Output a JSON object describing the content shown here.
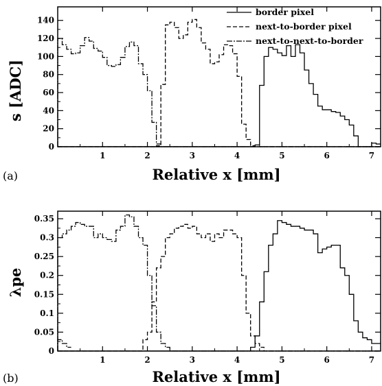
{
  "figure": {
    "panels": [
      {
        "panel_label": "(a)",
        "xlabel": "Relative x [mm]",
        "ylabel": "s [ADC]"
      },
      {
        "panel_label": "(b)",
        "xlabel": "Relative x [mm]",
        "ylabel": "λpe"
      }
    ]
  },
  "chart_data": [
    {
      "type": "line",
      "step": true,
      "panel_label": "(a)",
      "title": "",
      "xlabel": "Relative x [mm]",
      "ylabel": "s [ADC]",
      "xlim": [
        0.0,
        7.2
      ],
      "ylim": [
        0,
        155
      ],
      "xticks": [
        1,
        2,
        3,
        4,
        5,
        6,
        7
      ],
      "yticks": [
        0,
        20,
        40,
        60,
        80,
        100,
        120,
        140
      ],
      "grid": false,
      "legend_position": "top-right",
      "series": [
        {
          "name": "border pixel",
          "line_style": "solid",
          "x": [
            0.1,
            0.2,
            0.3,
            0.4,
            0.5,
            0.6,
            0.7,
            0.8,
            0.9,
            1.0,
            1.1,
            1.2,
            1.3,
            1.4,
            1.5,
            1.6,
            1.7,
            1.8,
            1.9,
            2.0,
            2.1,
            2.2,
            2.3,
            2.4,
            2.5,
            2.6,
            2.7,
            2.8,
            2.9,
            3.0,
            3.1,
            3.2,
            3.3,
            3.4,
            3.5,
            3.6,
            3.7,
            3.8,
            3.9,
            4.0,
            4.1,
            4.2,
            4.3,
            4.4,
            4.5,
            4.6,
            4.7,
            4.8,
            4.9,
            5.0,
            5.1,
            5.2,
            5.3,
            5.4,
            5.5,
            5.6,
            5.7,
            5.8,
            5.9,
            6.0,
            6.1,
            6.2,
            6.3,
            6.4,
            6.5,
            6.6,
            6.7,
            6.8,
            6.9,
            7.0,
            7.1,
            7.2
          ],
          "y": [
            0,
            0,
            0,
            0,
            0,
            0,
            0,
            0,
            0,
            0,
            0,
            0,
            0,
            0,
            0,
            0,
            0,
            0,
            0,
            0,
            0,
            0,
            0,
            0,
            0,
            0,
            0,
            0,
            0,
            0,
            0,
            0,
            0,
            0,
            0,
            0,
            0,
            0,
            0,
            0,
            0,
            0,
            0,
            0,
            2,
            68,
            100,
            110,
            108,
            104,
            101,
            112,
            100,
            113,
            104,
            85,
            70,
            58,
            45,
            41,
            41,
            39,
            38,
            34,
            30,
            24,
            12,
            0,
            0,
            0,
            4,
            3
          ]
        },
        {
          "name": "next-to-border pixel",
          "line_style": "dashed",
          "x": [
            0.1,
            0.2,
            0.3,
            0.4,
            0.5,
            0.6,
            0.7,
            0.8,
            0.9,
            1.0,
            1.1,
            1.2,
            1.3,
            1.4,
            1.5,
            1.6,
            1.7,
            1.8,
            1.9,
            2.0,
            2.1,
            2.2,
            2.3,
            2.4,
            2.5,
            2.6,
            2.7,
            2.8,
            2.9,
            3.0,
            3.1,
            3.2,
            3.3,
            3.4,
            3.5,
            3.6,
            3.7,
            3.8,
            3.9,
            4.0,
            4.1,
            4.2,
            4.3,
            4.4,
            4.5,
            4.6,
            4.7,
            4.8,
            4.9,
            5.0,
            5.1,
            5.2,
            5.3,
            5.4,
            5.5,
            5.6,
            5.7,
            5.8,
            5.9,
            6.0,
            6.1,
            6.2,
            6.3,
            6.4,
            6.5,
            6.6,
            6.7,
            6.8,
            6.9,
            7.0,
            7.1,
            7.2
          ],
          "y": [
            0,
            0,
            0,
            0,
            0,
            0,
            0,
            0,
            0,
            0,
            0,
            0,
            0,
            0,
            0,
            0,
            0,
            0,
            0,
            0,
            0,
            0,
            1,
            69,
            135,
            138,
            132,
            120,
            124,
            138,
            141,
            132,
            115,
            108,
            92,
            94,
            102,
            113,
            112,
            103,
            78,
            25,
            8,
            1,
            0,
            0,
            0,
            0,
            0,
            0,
            0,
            0,
            0,
            0,
            0,
            0,
            0,
            0,
            0,
            0,
            0,
            0,
            0,
            0,
            0,
            0,
            0,
            0,
            0,
            0,
            0,
            0
          ]
        },
        {
          "name": "next-to-next-to-border",
          "line_style": "dash-dot",
          "x": [
            0.1,
            0.2,
            0.3,
            0.4,
            0.5,
            0.6,
            0.7,
            0.8,
            0.9,
            1.0,
            1.1,
            1.2,
            1.3,
            1.4,
            1.5,
            1.6,
            1.7,
            1.8,
            1.9,
            2.0,
            2.1,
            2.2,
            2.3,
            2.4,
            2.5,
            2.6,
            2.7,
            2.8,
            2.9,
            3.0,
            3.1,
            3.2,
            3.3,
            3.4,
            3.5,
            3.6,
            3.7,
            3.8,
            3.9,
            4.0,
            4.1,
            4.2,
            4.3,
            4.4,
            4.5,
            4.6,
            4.7,
            4.8,
            4.9,
            5.0,
            5.1,
            5.2,
            5.3,
            5.4,
            5.5,
            5.6,
            5.7,
            5.8,
            5.9,
            6.0,
            6.1,
            6.2,
            6.3,
            6.4,
            6.5,
            6.6,
            6.7,
            6.8,
            6.9,
            7.0,
            7.1,
            7.2
          ],
          "y": [
            120,
            113,
            108,
            103,
            104,
            112,
            121,
            117,
            109,
            106,
            99,
            90,
            89,
            91,
            99,
            111,
            116,
            112,
            92,
            80,
            62,
            27,
            3,
            0,
            0,
            0,
            0,
            0,
            0,
            0,
            0,
            0,
            0,
            0,
            0,
            0,
            0,
            0,
            0,
            0,
            0,
            0,
            0,
            0,
            0,
            0,
            0,
            0,
            0,
            0,
            0,
            0,
            0,
            0,
            0,
            0,
            0,
            0,
            0,
            0,
            0,
            0,
            0,
            0,
            0,
            0,
            0,
            0,
            0,
            0,
            0,
            0
          ]
        }
      ]
    },
    {
      "type": "line",
      "step": true,
      "panel_label": "(b)",
      "title": "",
      "xlabel": "Relative x [mm]",
      "ylabel": "λpe",
      "xlim": [
        0.0,
        7.2
      ],
      "ylim": [
        0,
        0.37
      ],
      "xticks": [
        1,
        2,
        3,
        4,
        5,
        6,
        7
      ],
      "yticks": [
        0,
        0.05,
        0.1,
        0.15,
        0.2,
        0.25,
        0.3,
        0.35
      ],
      "grid": false,
      "series": [
        {
          "name": "border pixel",
          "line_style": "solid",
          "x": [
            0.1,
            0.2,
            0.3,
            0.4,
            0.5,
            0.6,
            0.7,
            0.8,
            0.9,
            1.0,
            1.1,
            1.2,
            1.3,
            1.4,
            1.5,
            1.6,
            1.7,
            1.8,
            1.9,
            2.0,
            2.1,
            2.2,
            2.3,
            2.4,
            2.5,
            2.6,
            2.7,
            2.8,
            2.9,
            3.0,
            3.1,
            3.2,
            3.3,
            3.4,
            3.5,
            3.6,
            3.7,
            3.8,
            3.9,
            4.0,
            4.1,
            4.2,
            4.3,
            4.4,
            4.5,
            4.6,
            4.7,
            4.8,
            4.9,
            5.0,
            5.1,
            5.2,
            5.3,
            5.4,
            5.5,
            5.6,
            5.7,
            5.8,
            5.9,
            6.0,
            6.1,
            6.2,
            6.3,
            6.4,
            6.5,
            6.6,
            6.7,
            6.8,
            6.9,
            7.0,
            7.1,
            7.2
          ],
          "y": [
            0,
            0,
            0,
            0,
            0,
            0,
            0,
            0,
            0,
            0,
            0,
            0,
            0,
            0,
            0,
            0,
            0,
            0,
            0,
            0,
            0,
            0,
            0,
            0,
            0,
            0,
            0,
            0,
            0,
            0,
            0,
            0,
            0,
            0,
            0,
            0,
            0,
            0,
            0,
            0,
            0,
            0,
            0,
            0.01,
            0.04,
            0.13,
            0.21,
            0.28,
            0.31,
            0.345,
            0.34,
            0.335,
            0.33,
            0.33,
            0.325,
            0.32,
            0.32,
            0.31,
            0.26,
            0.27,
            0.275,
            0.28,
            0.28,
            0.22,
            0.2,
            0.15,
            0.08,
            0.05,
            0.035,
            0.03,
            0.02,
            0.02
          ]
        },
        {
          "name": "next-to-border pixel",
          "line_style": "dashed",
          "x": [
            0.1,
            0.2,
            0.3,
            0.4,
            0.5,
            0.6,
            0.7,
            0.8,
            0.9,
            1.0,
            1.1,
            1.2,
            1.3,
            1.4,
            1.5,
            1.6,
            1.7,
            1.8,
            1.9,
            2.0,
            2.1,
            2.2,
            2.3,
            2.4,
            2.5,
            2.6,
            2.7,
            2.8,
            2.9,
            3.0,
            3.1,
            3.2,
            3.3,
            3.4,
            3.5,
            3.6,
            3.7,
            3.8,
            3.9,
            4.0,
            4.1,
            4.2,
            4.3,
            4.4,
            4.5,
            4.6,
            4.7,
            4.8,
            4.9,
            5.0,
            5.1,
            5.2,
            5.3,
            5.4,
            5.5,
            5.6,
            5.7,
            5.8,
            5.9,
            6.0,
            6.1,
            6.2,
            6.3,
            6.4,
            6.5,
            6.6,
            6.7,
            6.8,
            6.9,
            7.0,
            7.1,
            7.2
          ],
          "y": [
            0,
            0,
            0,
            0,
            0,
            0,
            0,
            0,
            0,
            0,
            0,
            0,
            0,
            0,
            0,
            0,
            0,
            0,
            0,
            0.03,
            0.05,
            0.13,
            0.22,
            0.25,
            0.3,
            0.31,
            0.325,
            0.33,
            0.335,
            0.325,
            0.33,
            0.31,
            0.3,
            0.31,
            0.29,
            0.31,
            0.3,
            0.32,
            0.32,
            0.31,
            0.3,
            0.2,
            0.1,
            0.04,
            0.02,
            0.01,
            0,
            0,
            0,
            0,
            0,
            0,
            0,
            0,
            0,
            0,
            0,
            0,
            0,
            0,
            0,
            0,
            0,
            0,
            0,
            0,
            0,
            0,
            0,
            0,
            0,
            0
          ]
        },
        {
          "name": "next-to-next-to-border",
          "line_style": "dash-dot",
          "x": [
            0.1,
            0.2,
            0.3,
            0.4,
            0.5,
            0.6,
            0.7,
            0.8,
            0.9,
            1.0,
            1.1,
            1.2,
            1.3,
            1.4,
            1.5,
            1.6,
            1.7,
            1.8,
            1.9,
            2.0,
            2.1,
            2.2,
            2.3,
            2.4,
            2.5,
            2.6,
            2.7,
            2.8,
            2.9,
            3.0,
            3.1,
            3.2,
            3.3,
            3.4,
            3.5,
            3.6,
            3.7,
            3.8,
            3.9,
            4.0,
            4.1,
            4.2,
            4.3,
            4.4,
            4.5,
            4.6,
            4.7,
            4.8,
            4.9,
            5.0,
            5.1,
            5.2,
            5.3,
            5.4,
            5.5,
            5.6,
            5.7,
            5.8,
            5.9,
            6.0,
            6.1,
            6.2,
            6.3,
            6.4,
            6.5,
            6.6,
            6.7,
            6.8,
            6.9,
            7.0,
            7.1,
            7.2
          ],
          "y": [
            0.3,
            0.31,
            0.32,
            0.33,
            0.34,
            0.335,
            0.33,
            0.33,
            0.3,
            0.31,
            0.3,
            0.295,
            0.29,
            0.32,
            0.33,
            0.36,
            0.355,
            0.33,
            0.3,
            0.28,
            0.2,
            0.12,
            0.05,
            0.02,
            0.01,
            0,
            0,
            0,
            0,
            0,
            0,
            0,
            0,
            0,
            0,
            0,
            0,
            0,
            0,
            0,
            0,
            0,
            0,
            0,
            0,
            0,
            0,
            0,
            0,
            0,
            0,
            0,
            0,
            0,
            0,
            0,
            0,
            0,
            0,
            0,
            0,
            0,
            0,
            0,
            0,
            0,
            0,
            0,
            0,
            0,
            0,
            0
          ]
        }
      ],
      "extra_series": [
        {
          "line_style": "dash-dot",
          "x": [
            0.1,
            0.2,
            0.3
          ],
          "y": [
            0.03,
            0.02,
            0.01
          ]
        }
      ]
    }
  ]
}
